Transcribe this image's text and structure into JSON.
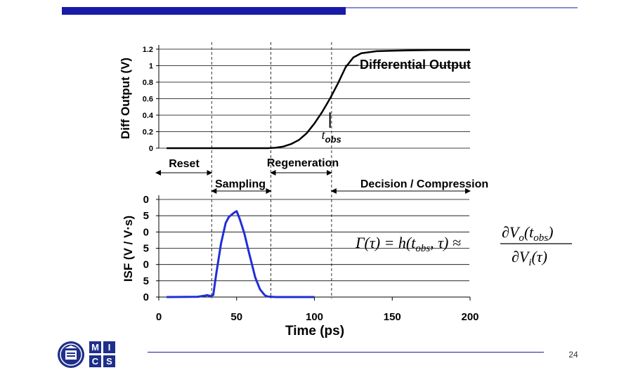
{
  "slide": {
    "page_number": "24",
    "logo_letters": [
      "M",
      "I",
      "C",
      "S"
    ]
  },
  "colors": {
    "header_bar": "#1a1aa8",
    "diff_curve": "#000000",
    "isf_curve": "#1f2fd6",
    "grid": "#000000",
    "text": "#000000"
  },
  "phases": {
    "reset": "Reset",
    "sampling": "Sampling",
    "regeneration": "Regeneration",
    "decision": "Decision / Compression"
  },
  "formula": {
    "lhs": "Γ(τ) = h(t",
    "lhs_sub": "obs",
    "lhs_tail": ", τ) ≈",
    "num": "∂V",
    "num_sub": "o",
    "num_arg": "(t",
    "num_arg_sub": "obs",
    "num_close": ")",
    "den": "∂V",
    "den_sub": "i",
    "den_arg": "(τ)"
  },
  "chart_data": [
    {
      "type": "line",
      "ylabel": "Diff Output (V)",
      "ylim": [
        0,
        1.2
      ],
      "xlim": [
        0,
        200
      ],
      "y_ticks": [
        "0",
        "0.2",
        "0.4",
        "0.6",
        "0.8",
        "1",
        "1.2"
      ],
      "grid": true,
      "series": [
        {
          "name": "Differential Output",
          "x": [
            5,
            70,
            75,
            80,
            85,
            90,
            95,
            100,
            105,
            110,
            115,
            120,
            125,
            130,
            140,
            150,
            160,
            175,
            200
          ],
          "y": [
            0,
            0,
            0.005,
            0.02,
            0.05,
            0.1,
            0.18,
            0.3,
            0.44,
            0.6,
            0.78,
            0.98,
            1.1,
            1.15,
            1.175,
            1.18,
            1.185,
            1.19,
            1.19
          ]
        }
      ],
      "annotations": [
        {
          "text": "t",
          "sub": "obs",
          "x": 110
        }
      ],
      "phase_boundaries_x": [
        34,
        72,
        111
      ]
    },
    {
      "type": "line",
      "ylabel": "ISF (V / V·s)",
      "xlabel": "Time (ps)",
      "xlim": [
        0,
        200
      ],
      "x_ticks": [
        "0",
        "50",
        "100",
        "150",
        "200"
      ],
      "y_ticks": [
        "0",
        "5",
        "0",
        "5",
        "0",
        "5",
        "0"
      ],
      "grid": true,
      "series": [
        {
          "name": "",
          "x": [
            5,
            25,
            30,
            31,
            33,
            35,
            37,
            40,
            43,
            45,
            48,
            50,
            52,
            55,
            58,
            62,
            65,
            68,
            70,
            75,
            100
          ],
          "y": [
            0,
            0.003,
            0.015,
            0.02,
            0.01,
            0.02,
            0.25,
            0.55,
            0.76,
            0.82,
            0.86,
            0.88,
            0.8,
            0.65,
            0.45,
            0.2,
            0.08,
            0.02,
            0.005,
            0,
            0
          ]
        }
      ]
    }
  ]
}
